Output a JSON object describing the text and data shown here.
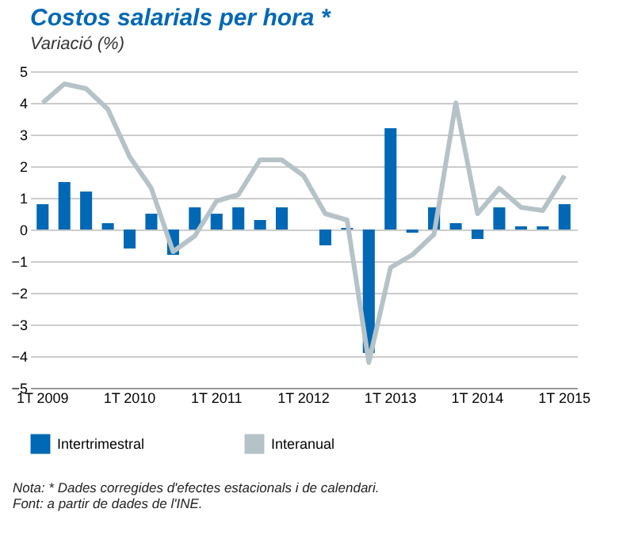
{
  "chart_data": {
    "type": "bar",
    "title": "Costos salarials per hora *",
    "subtitle": "Variació (%)",
    "categories": [
      "1T 2009",
      null,
      null,
      null,
      "1T 2010",
      null,
      null,
      null,
      "1T 2011",
      null,
      null,
      null,
      "1T 2012",
      null,
      null,
      null,
      "1T 2013",
      null,
      null,
      null,
      "1T 2014",
      null,
      null,
      null,
      "1T 2015"
    ],
    "series": [
      {
        "name": "Intertrimestral",
        "color": "#0068b4",
        "values": [
          0.8,
          1.5,
          1.2,
          0.2,
          -0.6,
          0.5,
          -0.8,
          0.7,
          0.5,
          0.7,
          0.3,
          0.7,
          0,
          -0.5,
          0.05,
          -3.9,
          3.2,
          -0.1,
          0.7,
          0.2,
          -0.3,
          0.7,
          0.1,
          0.1,
          0.8
        ]
      },
      {
        "name": "Interanual",
        "type": "line",
        "color": "#b5c3c8",
        "values": [
          4.0,
          4.6,
          4.45,
          3.8,
          2.3,
          1.3,
          -0.7,
          -0.2,
          0.9,
          1.1,
          2.2,
          2.2,
          1.7,
          0.5,
          0.3,
          -4.2,
          -1.2,
          -0.8,
          -0.15,
          4.0,
          0.5,
          1.3,
          0.7,
          0.6,
          1.7
        ]
      }
    ],
    "ylim": [
      -5,
      5
    ],
    "yticks": [
      -5,
      -4,
      -3,
      -2,
      -1,
      0,
      1,
      2,
      3,
      4,
      5
    ],
    "grid": "y",
    "legend": "bottom",
    "annotations": [
      "Nota: * Dades corregides d'efectes estacionals i de calendari.",
      "Font: a partir de dades de l'INE."
    ]
  }
}
